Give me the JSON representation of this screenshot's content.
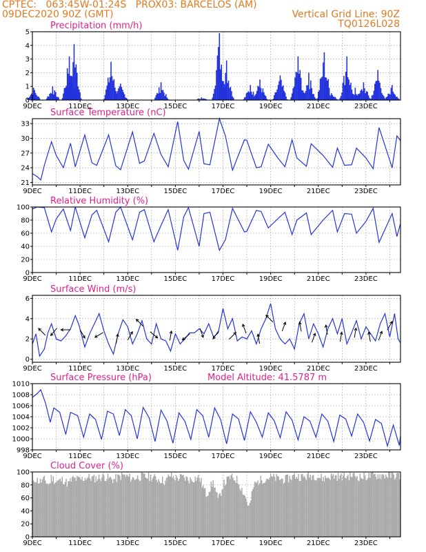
{
  "header": {
    "line1_left": "CPTEC:   063:45W-01:24S   PROX03: BARCELOS (AM)",
    "line2_left": "09DEC2020 90Z (GMT)",
    "line2_right": "Vertical Grid Line: 90Z",
    "line3_right": "TQ0126L028"
  },
  "colors": {
    "header": "#e07a1f",
    "title": "#e0208a",
    "line": "#2233dd",
    "cloud": "#aaaaaa",
    "grid": "#888888"
  },
  "x_tick_labels": [
    "9DEC",
    "11DEC",
    "13DEC",
    "15DEC",
    "17DEC",
    "19DEC",
    "21DEC",
    "23DEC"
  ],
  "chart_data": [
    {
      "id": "precip",
      "type": "bar",
      "title": "Precipitation  (mm/h)",
      "ylim": [
        0,
        5
      ],
      "yticks": [
        0,
        1,
        2,
        3,
        4,
        5
      ],
      "grid": true,
      "bursts": [
        [
          9.05,
          0.9
        ],
        [
          9.85,
          1.0
        ],
        [
          10.55,
          3.2
        ],
        [
          10.75,
          4.1
        ],
        [
          12.3,
          2.8
        ],
        [
          12.7,
          1.2
        ],
        [
          14.4,
          1.3
        ],
        [
          16.1,
          0.2
        ],
        [
          16.85,
          4.9
        ],
        [
          17.15,
          2.9
        ],
        [
          18.15,
          1.1
        ],
        [
          18.55,
          1.5
        ],
        [
          19.4,
          1.8
        ],
        [
          20.15,
          3.2
        ],
        [
          20.6,
          2.0
        ],
        [
          21.25,
          3.5
        ],
        [
          21.55,
          0.5
        ],
        [
          22.2,
          3.2
        ],
        [
          22.55,
          0.9
        ],
        [
          22.9,
          1.3
        ],
        [
          23.5,
          2.2
        ],
        [
          24.1,
          1.1
        ]
      ]
    },
    {
      "id": "temp",
      "type": "line",
      "title": "Surface Temperature (nC)",
      "ylim": [
        20.5,
        34
      ],
      "yticks": [
        21,
        24,
        27,
        30,
        33
      ],
      "grid": true,
      "x": [
        9.0,
        9.2,
        9.35,
        9.5,
        9.8,
        10.0,
        10.3,
        10.6,
        10.8,
        11.2,
        11.5,
        11.7,
        12.2,
        12.5,
        12.7,
        13.2,
        13.5,
        13.7,
        14.1,
        14.4,
        14.7,
        15.1,
        15.35,
        15.55,
        16.0,
        16.2,
        16.45,
        16.85,
        17.1,
        17.4,
        17.9,
        18.0,
        18.4,
        18.6,
        18.9,
        19.3,
        19.6,
        19.9,
        20.1,
        20.5,
        20.7,
        21.2,
        21.6,
        21.8,
        22.1,
        22.4,
        22.6,
        23.0,
        23.3,
        23.55,
        24.1,
        24.3,
        24.45
      ],
      "values": [
        22.8,
        22.2,
        21.5,
        24.5,
        29.3,
        26.5,
        24.0,
        29.0,
        24.2,
        30.7,
        25.0,
        24.5,
        30.7,
        24.4,
        23.6,
        31.3,
        24.9,
        25.4,
        31.0,
        26.7,
        24.2,
        33.4,
        25.5,
        23.7,
        31.4,
        24.8,
        24.6,
        34.0,
        30.5,
        23.5,
        29.7,
        29.6,
        24.0,
        24.2,
        28.8,
        26.0,
        24.2,
        29.7,
        26.0,
        24.3,
        28.9,
        26.5,
        24.1,
        28.0,
        24.5,
        24.6,
        28.0,
        26.0,
        23.8,
        32.2,
        24.0,
        30.5,
        29.5
      ]
    },
    {
      "id": "rh",
      "type": "line",
      "title": "Relative Humidity (%)",
      "ylim": [
        0,
        100
      ],
      "yticks": [
        0,
        20,
        40,
        60,
        80,
        100
      ],
      "grid": true,
      "x": [
        9.0,
        9.2,
        9.5,
        9.8,
        10.0,
        10.3,
        10.6,
        10.8,
        11.2,
        11.5,
        11.7,
        12.2,
        12.5,
        12.7,
        13.2,
        13.5,
        13.7,
        14.1,
        14.4,
        14.7,
        15.1,
        15.35,
        15.55,
        16.0,
        16.2,
        16.45,
        16.85,
        17.1,
        17.4,
        17.9,
        18.0,
        18.4,
        18.6,
        18.9,
        19.3,
        19.6,
        19.9,
        20.1,
        20.5,
        20.7,
        21.2,
        21.6,
        21.8,
        22.1,
        22.4,
        22.6,
        23.0,
        23.3,
        23.55,
        24.1,
        24.3,
        24.45
      ],
      "values": [
        97,
        100,
        99,
        62,
        82,
        97,
        64,
        100,
        53,
        88,
        95,
        47,
        92,
        100,
        50,
        92,
        96,
        47,
        72,
        96,
        34,
        85,
        99,
        40,
        90,
        92,
        34,
        50,
        98,
        62,
        63,
        95,
        93,
        68,
        82,
        92,
        58,
        80,
        91,
        58,
        80,
        95,
        62,
        90,
        89,
        60,
        78,
        98,
        46,
        90,
        55,
        75
      ]
    },
    {
      "id": "wind",
      "type": "line",
      "title": "Surface Wind (m/s)",
      "ylim": [
        -0.3,
        6.3
      ],
      "yticks": [
        0,
        2,
        4,
        6
      ],
      "grid": true,
      "x": [
        9.0,
        9.15,
        9.3,
        9.5,
        9.65,
        9.8,
        10.0,
        10.2,
        10.4,
        10.6,
        10.8,
        10.95,
        11.2,
        11.4,
        11.6,
        11.8,
        12.0,
        12.2,
        12.4,
        12.6,
        12.8,
        13.0,
        13.2,
        13.4,
        13.6,
        13.8,
        14.0,
        14.2,
        14.4,
        14.6,
        14.8,
        15.0,
        15.2,
        15.4,
        15.6,
        15.8,
        16.0,
        16.2,
        16.4,
        16.6,
        16.8,
        17.0,
        17.2,
        17.4,
        17.6,
        17.8,
        18.0,
        18.2,
        18.4,
        18.6,
        18.8,
        19.0,
        19.2,
        19.4,
        19.6,
        19.8,
        20.0,
        20.2,
        20.4,
        20.6,
        20.8,
        21.0,
        21.2,
        21.4,
        21.6,
        21.8,
        22.0,
        22.2,
        22.4,
        22.6,
        22.8,
        23.0,
        23.2,
        23.4,
        23.6,
        23.8,
        24.0,
        24.2,
        24.35,
        24.45
      ],
      "values": [
        1.5,
        2.5,
        0.3,
        1.0,
        2.6,
        3.5,
        2.0,
        1.8,
        2.3,
        3.0,
        4.3,
        3.4,
        1.2,
        2.5,
        3.5,
        4.5,
        2.8,
        1.5,
        0.5,
        2.5,
        3.9,
        3.2,
        1.5,
        2.5,
        3.8,
        2.0,
        1.5,
        3.5,
        2.0,
        1.8,
        0.8,
        2.5,
        1.5,
        2.0,
        2.6,
        2.6,
        3.0,
        2.5,
        3.5,
        2.2,
        2.6,
        5.0,
        3.0,
        4.0,
        1.8,
        2.2,
        2.0,
        2.8,
        1.5,
        3.0,
        4.0,
        5.5,
        3.0,
        2.0,
        1.5,
        2.0,
        1.0,
        3.5,
        4.5,
        2.0,
        3.5,
        2.5,
        1.2,
        3.0,
        4.0,
        2.5,
        4.0,
        1.5,
        2.6,
        3.8,
        2.0,
        3.2,
        2.5,
        1.8,
        3.5,
        4.5,
        2.2,
        4.5,
        2.0,
        1.6
      ],
      "arrows": [
        [
          9.4,
          2.7,
          135
        ],
        [
          9.9,
          2.7,
          230
        ],
        [
          10.4,
          2.9,
          180
        ],
        [
          11.1,
          2.5,
          300
        ],
        [
          11.8,
          2.4,
          210
        ],
        [
          12.55,
          2.0,
          80
        ],
        [
          13.1,
          2.3,
          60
        ],
        [
          13.5,
          3.6,
          135
        ],
        [
          14.1,
          2.4,
          320
        ],
        [
          14.8,
          2.3,
          80
        ],
        [
          15.45,
          2.2,
          220
        ],
        [
          16.1,
          2.6,
          290
        ],
        [
          16.7,
          2.4,
          235
        ],
        [
          17.4,
          2.3,
          45
        ],
        [
          17.9,
          3.0,
          110
        ],
        [
          18.5,
          2.0,
          100
        ],
        [
          18.95,
          4.0,
          135
        ],
        [
          19.55,
          3.2,
          70
        ],
        [
          20.25,
          3.2,
          100
        ],
        [
          20.8,
          2.1,
          70
        ],
        [
          21.35,
          2.9,
          100
        ],
        [
          21.95,
          2.2,
          80
        ],
        [
          22.55,
          2.6,
          80
        ],
        [
          23.15,
          2.2,
          100
        ],
        [
          23.6,
          2.3,
          70
        ],
        [
          24.0,
          3.3,
          60
        ]
      ]
    },
    {
      "id": "pres",
      "type": "line",
      "title": "Surface Pressure (hPa)",
      "note": "Model Altitude: 41.5787 m",
      "ylim": [
        998,
        1010
      ],
      "yticks": [
        998,
        1000,
        1002,
        1004,
        1006,
        1008,
        1010
      ],
      "grid": true,
      "x": [
        9.0,
        9.2,
        9.35,
        9.55,
        9.75,
        9.9,
        10.15,
        10.4,
        10.6,
        10.9,
        11.15,
        11.4,
        11.65,
        11.9,
        12.15,
        12.4,
        12.65,
        12.9,
        13.15,
        13.4,
        13.65,
        13.9,
        14.15,
        14.4,
        14.65,
        14.9,
        15.15,
        15.4,
        15.65,
        15.9,
        16.15,
        16.4,
        16.65,
        16.9,
        17.15,
        17.4,
        17.65,
        17.9,
        18.15,
        18.4,
        18.65,
        18.9,
        19.15,
        19.4,
        19.65,
        19.9,
        20.15,
        20.4,
        20.65,
        20.9,
        21.15,
        21.4,
        21.65,
        21.9,
        22.15,
        22.4,
        22.65,
        22.9,
        23.15,
        23.4,
        23.65,
        23.9,
        24.15,
        24.4,
        24.45
      ],
      "values": [
        1007.5,
        1008.2,
        1008.9,
        1006.5,
        1003.0,
        1005.6,
        1004.8,
        1000.8,
        1004.8,
        1004.2,
        1000.3,
        1004.5,
        1003.5,
        999.9,
        1005.0,
        1004.5,
        1000.6,
        1005.3,
        1004.2,
        1000.0,
        1005.7,
        1003.8,
        999.5,
        1005.2,
        1003.2,
        999.2,
        1004.7,
        1003.2,
        999.9,
        1005.3,
        1004.2,
        1000.3,
        1005.6,
        1003.5,
        999.1,
        1004.5,
        1003.6,
        999.7,
        1004.9,
        1003.0,
        1000.3,
        1004.7,
        1003.3,
        1000.2,
        1004.9,
        1003.4,
        999.8,
        1004.0,
        1003.2,
        1000.3,
        1004.5,
        1003.2,
        999.5,
        1004.3,
        1003.6,
        1000.5,
        1004.5,
        1003.0,
        999.6,
        1003.5,
        1002.8,
        998.7,
        1002.5,
        998.8,
        1000.5
      ]
    },
    {
      "id": "cloud",
      "type": "area",
      "title": "Cloud Cover (%)",
      "ylim": [
        0,
        100
      ],
      "yticks": [
        0,
        20,
        40,
        60,
        80,
        100
      ],
      "grid": true,
      "x": [
        9.0,
        9.1,
        9.3,
        9.5,
        9.7,
        9.8,
        10.0,
        10.3,
        10.5,
        10.7,
        11.0,
        11.3,
        11.6,
        12.0,
        12.4,
        12.8,
        13.2,
        13.6,
        14.0,
        14.4,
        14.6,
        14.75,
        15.0,
        15.3,
        15.6,
        16.0,
        16.3,
        16.6,
        16.8,
        17.0,
        17.3,
        17.6,
        17.9,
        18.1,
        18.3,
        18.6,
        19.0,
        19.3,
        19.6,
        20.0,
        20.4,
        20.8,
        21.2,
        21.6,
        22.0,
        22.4,
        22.8,
        23.2,
        23.6,
        24.0,
        24.45
      ],
      "values": [
        75,
        90,
        85,
        88,
        80,
        92,
        85,
        88,
        82,
        90,
        88,
        92,
        90,
        93,
        88,
        95,
        90,
        93,
        92,
        88,
        85,
        95,
        90,
        92,
        88,
        92,
        65,
        85,
        55,
        80,
        92,
        88,
        65,
        45,
        80,
        88,
        92,
        90,
        88,
        94,
        92,
        95,
        90,
        94,
        92,
        95,
        92,
        94,
        95,
        95,
        94
      ]
    }
  ]
}
